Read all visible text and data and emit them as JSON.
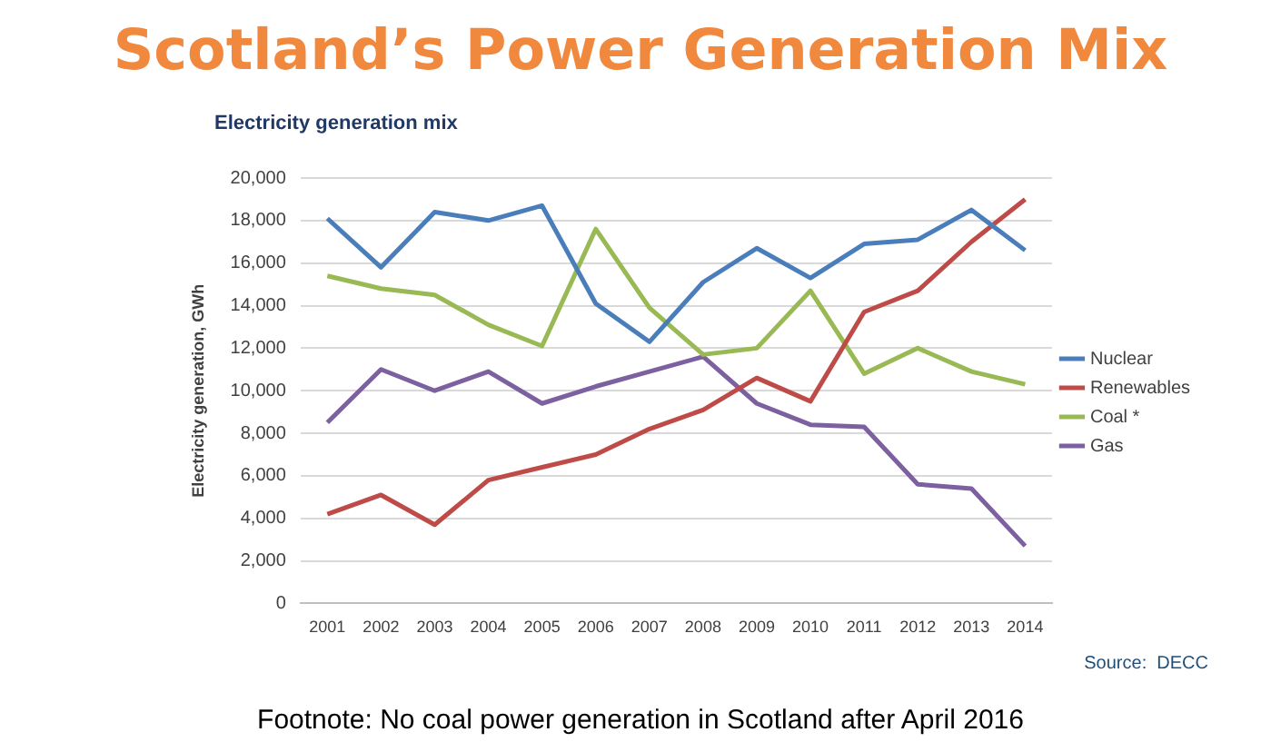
{
  "chart_data": {
    "type": "line",
    "title": "Scotland’s Power Generation Mix",
    "subtitle": "Electricity generation mix",
    "ylabel": "Electricity generation, GWh",
    "categories": [
      "2001",
      "2002",
      "2003",
      "2004",
      "2005",
      "2006",
      "2007",
      "2008",
      "2009",
      "2010",
      "2011",
      "2012",
      "2013",
      "2014"
    ],
    "series": [
      {
        "name": "Nuclear",
        "color": "#4a7ebb",
        "values": [
          18100,
          15800,
          18400,
          18000,
          18700,
          14100,
          12300,
          15100,
          16700,
          15300,
          16900,
          17100,
          18500,
          16600
        ]
      },
      {
        "name": "Renewables",
        "color": "#be4b48",
        "values": [
          4200,
          5100,
          3700,
          5800,
          6400,
          7000,
          8200,
          9100,
          10600,
          9500,
          13700,
          14700,
          17000,
          19000
        ]
      },
      {
        "name": "Coal *",
        "color": "#98b954",
        "values": [
          15400,
          14800,
          14500,
          13100,
          12100,
          17600,
          13900,
          11700,
          12000,
          14700,
          10800,
          12000,
          10900,
          10300
        ]
      },
      {
        "name": "Gas",
        "color": "#7d60a0",
        "values": [
          8500,
          11000,
          10000,
          10900,
          9400,
          10200,
          10900,
          11600,
          9400,
          8400,
          8300,
          5600,
          5400,
          2700
        ]
      }
    ],
    "ylim": [
      0,
      20000
    ],
    "yticks": [
      {
        "value": 0,
        "label": "0"
      },
      {
        "value": 2000,
        "label": "2,000"
      },
      {
        "value": 4000,
        "label": "4,000"
      },
      {
        "value": 6000,
        "label": "6,000"
      },
      {
        "value": 8000,
        "label": "8,000"
      },
      {
        "value": 10000,
        "label": "10,000"
      },
      {
        "value": 12000,
        "label": "12,000"
      },
      {
        "value": 14000,
        "label": "14,000"
      },
      {
        "value": 16000,
        "label": "16,000"
      },
      {
        "value": 18000,
        "label": "18,000"
      },
      {
        "value": 20000,
        "label": "20,000"
      }
    ],
    "grid": "y",
    "legend": "right",
    "marker": "none",
    "line_style": "solid",
    "annotations": [
      "Source:  DECC",
      "Footnote: No coal power generation in Scotland after April 2016"
    ]
  }
}
